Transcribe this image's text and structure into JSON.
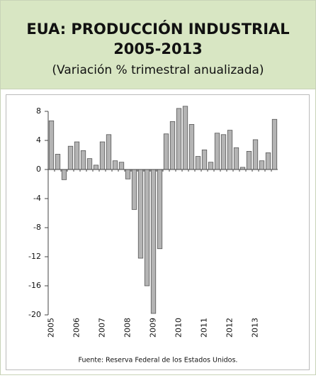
{
  "chart_data": {
    "type": "bar",
    "title": [
      "EUA: PRODUCCIÓN INDUSTRIAL",
      "2005-2013"
    ],
    "subtitle": "(Variación % trimestral anualizada)",
    "source": "Fuente:  Reserva Federal de los Estados Unidos.",
    "categories": [
      "2005",
      null,
      null,
      null,
      "2006",
      null,
      null,
      null,
      "2007",
      null,
      null,
      null,
      "2008",
      null,
      null,
      null,
      "2009",
      null,
      null,
      null,
      "2010",
      null,
      null,
      null,
      "2011",
      null,
      null,
      null,
      "2012",
      null,
      null,
      null,
      "2013",
      null,
      null,
      null
    ],
    "values": [
      6.7,
      2.1,
      -1.4,
      3.2,
      3.8,
      2.6,
      1.5,
      0.6,
      3.8,
      4.8,
      1.2,
      1.0,
      -1.3,
      -5.5,
      -12.2,
      -16.0,
      -19.8,
      -10.9,
      4.9,
      6.6,
      8.4,
      8.7,
      6.2,
      1.8,
      2.7,
      1.0,
      5.0,
      4.8,
      5.4,
      3.0,
      0.3,
      2.5,
      4.1,
      1.2,
      2.3,
      6.9
    ],
    "color": "#b4b4b4",
    "ylim": [
      -20,
      8
    ],
    "yticks": [
      -20,
      -16,
      -12,
      -8,
      -4,
      0,
      4,
      8
    ],
    "grid": false
  }
}
